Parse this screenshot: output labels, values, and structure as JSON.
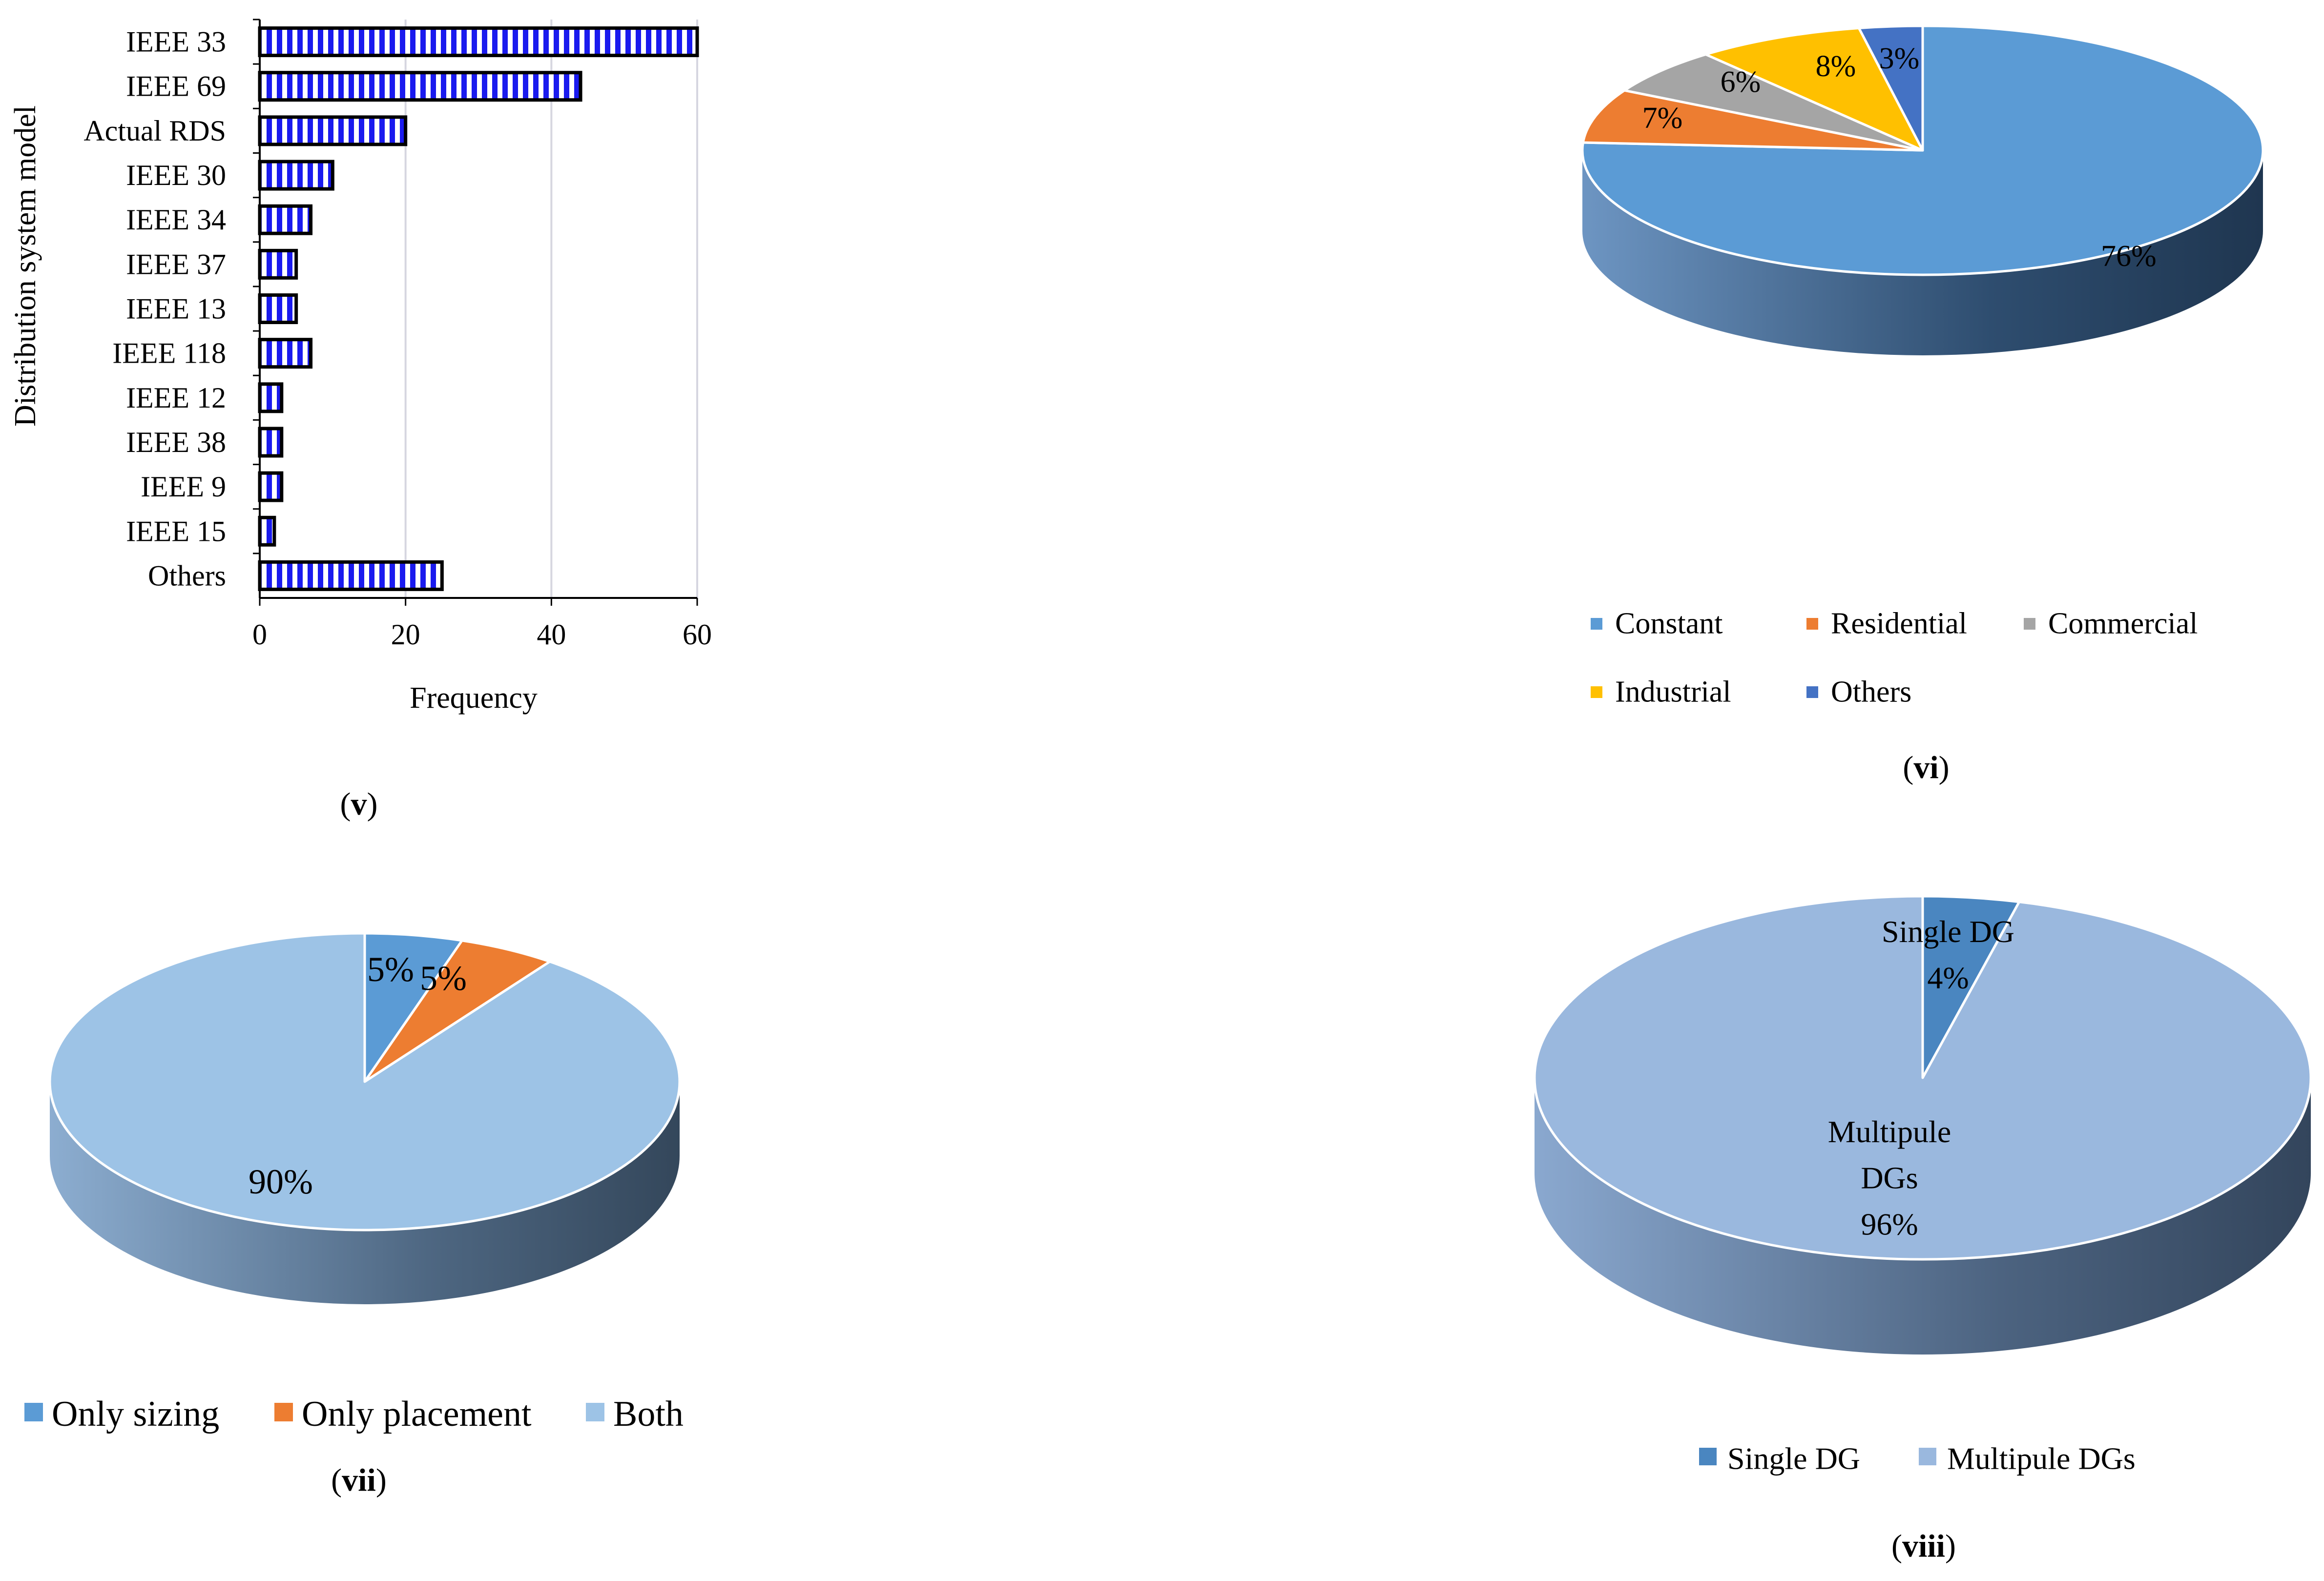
{
  "chart_data": [
    {
      "id": "v",
      "type": "bar",
      "orientation": "horizontal",
      "caption": "v",
      "categories": [
        "IEEE 33",
        "IEEE 69",
        "Actual RDS",
        "IEEE 30",
        "IEEE 34",
        "IEEE 37",
        "IEEE 13",
        "IEEE 118",
        "IEEE 12",
        "IEEE 38",
        "IEEE 9",
        "IEEE 15",
        "Others"
      ],
      "values": [
        60,
        44,
        20,
        10,
        7,
        5,
        5,
        7,
        3,
        3,
        3,
        2,
        25
      ],
      "xlabel": "Frequency",
      "ylabel": "Distribution system  model",
      "xlim": [
        0,
        60
      ],
      "xticks": [
        0,
        20,
        40,
        60
      ],
      "grid": true,
      "bar_fill": "#1a1aee",
      "bar_stripe": "#ffffff",
      "bar_edge": "#000000"
    },
    {
      "id": "vi",
      "type": "pie",
      "style": "3d",
      "caption": "vi",
      "labels": [
        "Constant",
        "Residential",
        "Commercial",
        "Industrial",
        "Others"
      ],
      "values": [
        76,
        7,
        6,
        8,
        3
      ],
      "value_labels": [
        "76%",
        "7%",
        "6%",
        "8%",
        "3%"
      ],
      "colors": [
        "#5b9bd5",
        "#ed7d31",
        "#a5a5a5",
        "#ffc000",
        "#4472c4"
      ],
      "legend_position": "bottom"
    },
    {
      "id": "vii",
      "type": "pie",
      "style": "3d",
      "caption": "vii",
      "labels": [
        "Only sizing",
        "Only placement",
        "Both"
      ],
      "values": [
        5,
        5,
        90
      ],
      "value_labels": [
        "5%",
        "5%",
        "90%"
      ],
      "colors": [
        "#5b9bd5",
        "#ed7d31",
        "#9dc3e6"
      ],
      "legend_position": "bottom"
    },
    {
      "id": "viii",
      "type": "pie",
      "style": "3d",
      "caption": "viii",
      "labels": [
        "Single DG",
        "Multipule DGs"
      ],
      "values": [
        4,
        96
      ],
      "value_labels": [
        "Single DG\n4%",
        "Multipule\nDGs\n96%"
      ],
      "colors": [
        "#4a86c0",
        "#9ab8de"
      ],
      "legend_position": "bottom"
    }
  ]
}
